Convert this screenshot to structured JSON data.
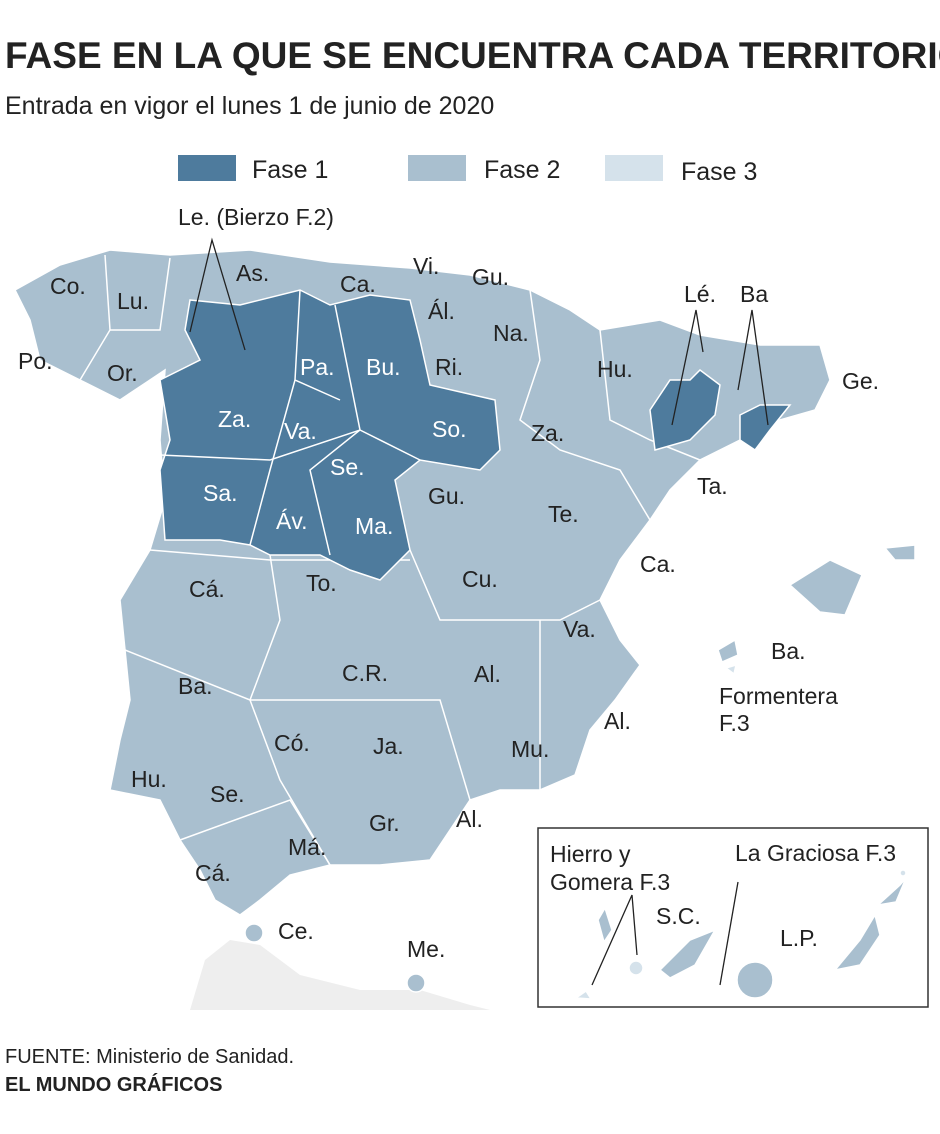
{
  "header": {
    "title": "FASE EN LA QUE SE ENCUENTRA CADA TERRITORIO",
    "subtitle": "Entrada en vigor el lunes 1 de junio de 2020"
  },
  "legend": [
    {
      "label": "Fase 1",
      "color": "#4e7b9d"
    },
    {
      "label": "Fase 2",
      "color": "#a9bfcf"
    },
    {
      "label": "Fase 3",
      "color": "#d5e2eb"
    }
  ],
  "labels": [
    "Co.",
    "Lu.",
    "As.",
    "Ca.",
    "Vi.",
    "Gu.",
    "Ál.",
    "Na.",
    "Po.",
    "Or.",
    "Pa.",
    "Bu.",
    "Ri.",
    "Hu.",
    "Ge.",
    "Za.",
    "Va.",
    "So.",
    "Za.",
    "Ta.",
    "Se.",
    "Sa.",
    "Áv.",
    "Ma.",
    "Gu.",
    "Te.",
    "Ca.",
    "Cá.",
    "To.",
    "Cu.",
    "Va.",
    "Ba.",
    "Ba.",
    "C.R.",
    "Al.",
    "Al.",
    "Có.",
    "Ja.",
    "Mu.",
    "Hu.",
    "Se.",
    "Gr.",
    "Al.",
    "Má.",
    "Cá.",
    "Ce.",
    "Me.",
    "S.C.",
    "L.P."
  ],
  "annotations": {
    "bierzo": "Le. (Bierzo F.2)",
    "lleida": "Lé.",
    "barcelona": "Ba",
    "formentera": [
      "Formentera",
      "F.3"
    ],
    "hierro_gomera": [
      "Hierro y",
      "Gomera F.3"
    ],
    "graciosa": "La Graciosa F.3"
  },
  "footer": {
    "source": "FUENTE: Ministerio de Sanidad.",
    "credit": "EL MUNDO GRÁFICOS"
  }
}
